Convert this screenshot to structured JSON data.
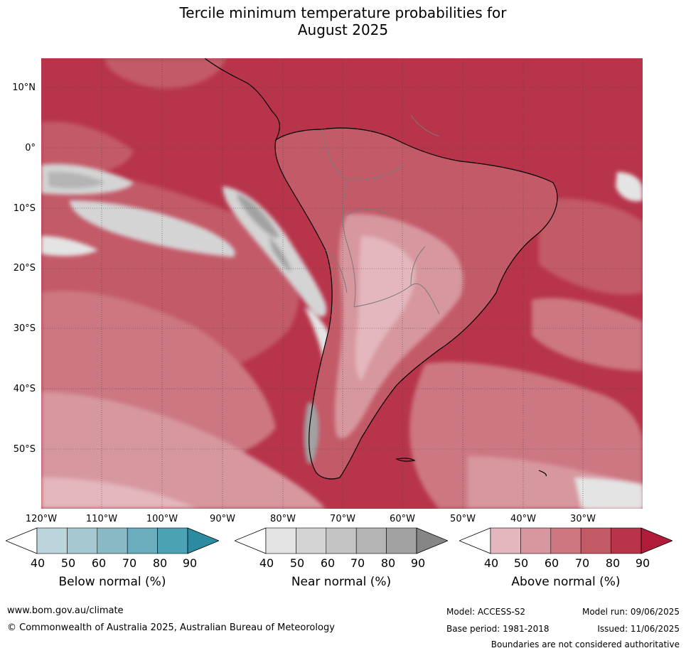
{
  "title": {
    "line1": "Tercile minimum temperature probabilities for",
    "line2": "August 2025"
  },
  "axes": {
    "latitudes": [
      "10°N",
      "0°",
      "10°S",
      "20°S",
      "30°S",
      "40°S",
      "50°S"
    ],
    "longitudes": [
      "120°W",
      "110°W",
      "100°W",
      "90°W",
      "80°W",
      "70°W",
      "60°W",
      "50°W",
      "40°W",
      "30°W"
    ]
  },
  "colorbars": [
    {
      "label": "Below normal (%)",
      "ticks": [
        "40",
        "50",
        "60",
        "70",
        "80",
        "90"
      ],
      "colors": [
        "#ffffff",
        "#bcd5dc",
        "#a6c8d1",
        "#8ab9c6",
        "#6aadbd",
        "#49a3b5",
        "#2b8ca1"
      ]
    },
    {
      "label": "Near normal (%)",
      "ticks": [
        "40",
        "50",
        "60",
        "70",
        "80",
        "90"
      ],
      "colors": [
        "#ffffff",
        "#e4e4e4",
        "#d4d4d4",
        "#c4c4c4",
        "#b4b4b4",
        "#a2a2a2",
        "#868686"
      ]
    },
    {
      "label": "Above normal (%)",
      "ticks": [
        "40",
        "50",
        "60",
        "70",
        "80",
        "90"
      ],
      "colors": [
        "#ffffff",
        "#e3b7bd",
        "#d7979f",
        "#cc7781",
        "#c35a67",
        "#b8344a",
        "#b11c3b"
      ]
    }
  ],
  "footer": {
    "website": "www.bom.gov.au/climate",
    "copyright": "© Commonwealth of Australia 2025, Australian Bureau of Meteorology",
    "model": "Model: ACCESS-S2",
    "base_period": "Base period: 1981-2018",
    "model_run": "Model run: 09/06/2025",
    "issued": "Issued: 11/06/2025",
    "boundaries": "Boundaries are not considered authoritative"
  }
}
